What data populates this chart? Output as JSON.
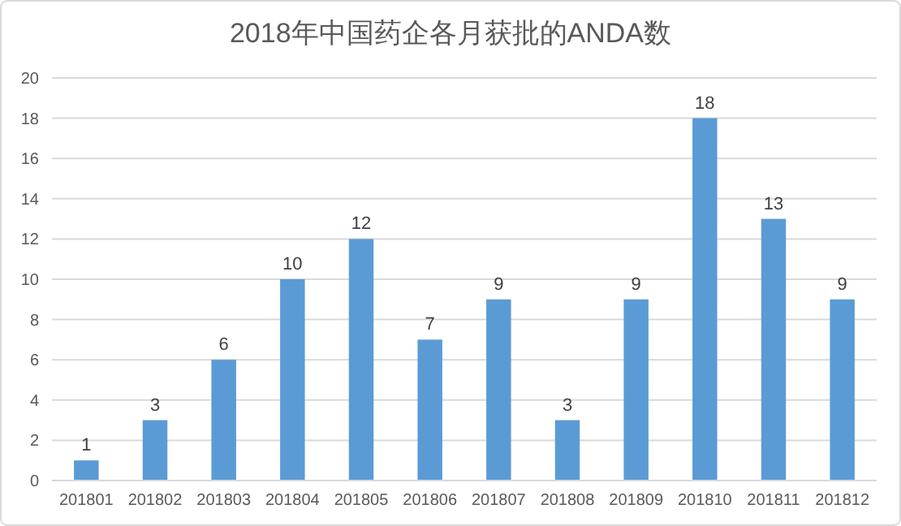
{
  "chart_data": {
    "type": "bar",
    "title": "2018年中国药企各月获批的ANDA数",
    "categories": [
      "201801",
      "201802",
      "201803",
      "201804",
      "201805",
      "201806",
      "201807",
      "201808",
      "201809",
      "201810",
      "201811",
      "201812"
    ],
    "values": [
      1,
      3,
      6,
      10,
      12,
      7,
      9,
      3,
      9,
      18,
      13,
      9
    ],
    "color": "#5b9bd5",
    "ylim": [
      0,
      20
    ],
    "yticks": [
      0,
      2,
      4,
      6,
      8,
      10,
      12,
      14,
      16,
      18,
      20
    ],
    "grid": "y",
    "data_labels": true
  }
}
